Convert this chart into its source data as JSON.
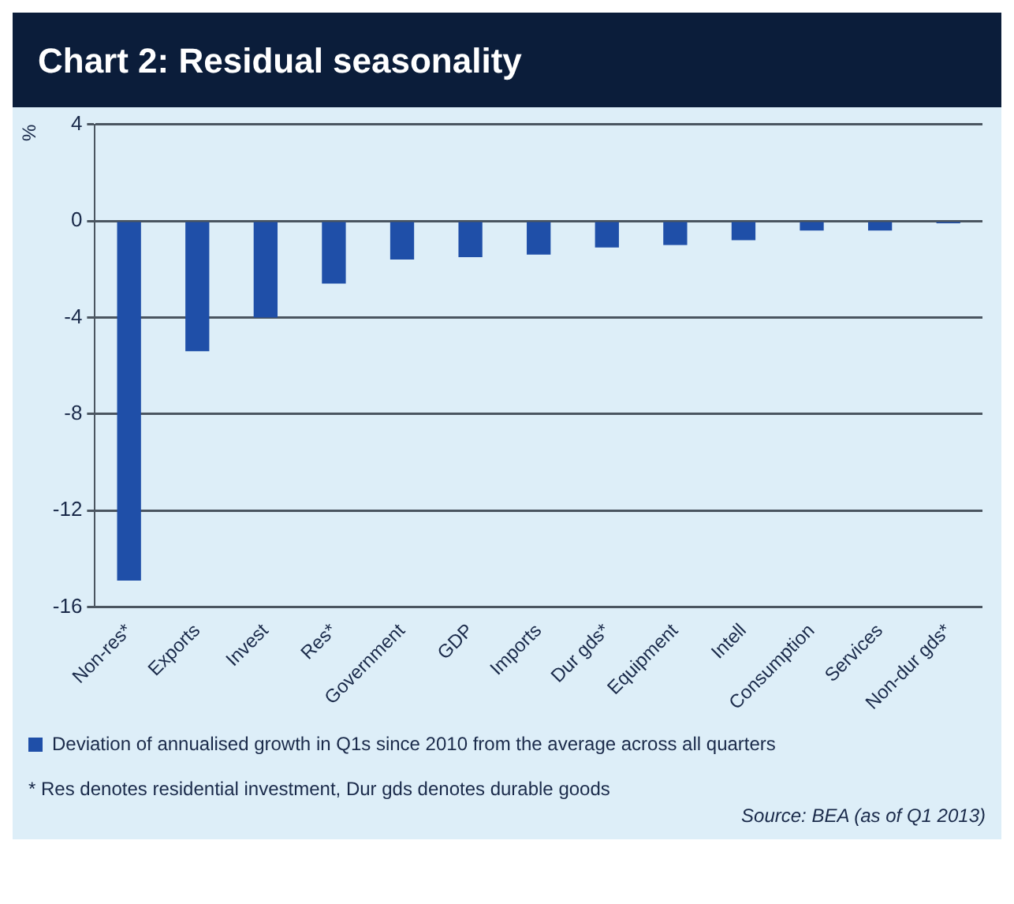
{
  "chart_data": {
    "type": "bar",
    "title": "Chart 2: Residual seasonality",
    "ylabel": "%",
    "categories": [
      "Non-res*",
      "Exports",
      "Invest",
      "Res*",
      "Government",
      "GDP",
      "Imports",
      "Dur gds*",
      "Equipment",
      "Intell",
      "Consumption",
      "Services",
      "Non-dur gds*"
    ],
    "series": [
      {
        "name": "Deviation of annualised growth in Q1s since 2010 from the average across all quarters",
        "color": "#1f4fa8",
        "values": [
          -14.9,
          -5.4,
          -4.0,
          -2.6,
          -1.6,
          -1.5,
          -1.4,
          -1.1,
          -1.0,
          -0.8,
          -0.4,
          -0.4,
          -0.1
        ]
      }
    ],
    "ylim": [
      -16,
      4
    ],
    "yticks": [
      -16,
      -12,
      -8,
      -4,
      0,
      4
    ],
    "grid": "y",
    "legend": "bottom",
    "annotations": [
      "* Res denotes residential investment, Dur gds denotes durable goods",
      "Source: BEA (as of Q1 2013)"
    ]
  }
}
